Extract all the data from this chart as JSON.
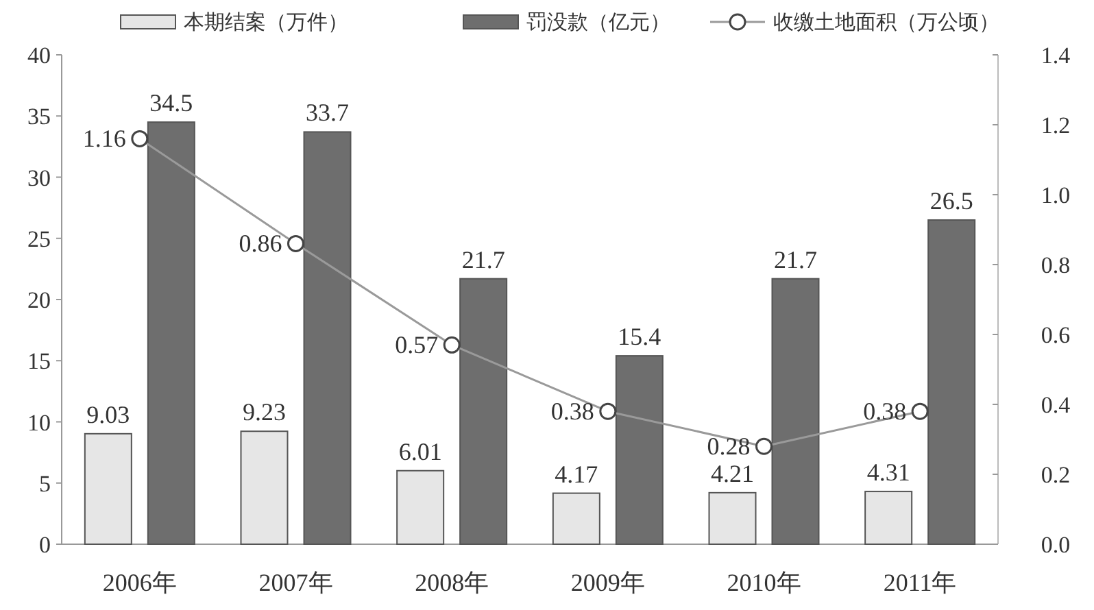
{
  "chart_data": {
    "type": "bar",
    "categories": [
      "2006年",
      "2007年",
      "2008年",
      "2009年",
      "2010年",
      "2011年"
    ],
    "series": [
      {
        "name": "本期结案（万件）",
        "color": "#e6e6e6",
        "values": [
          9.03,
          9.23,
          6.01,
          4.17,
          4.21,
          4.31
        ]
      },
      {
        "name": "罚没款（亿元）",
        "color": "#6e6e6e",
        "values": [
          34.5,
          33.7,
          21.7,
          15.4,
          21.7,
          26.5
        ]
      },
      {
        "name": "收缴土地面积（万公顷）",
        "type": "line",
        "axis": "y2",
        "color": "#9a9a9a",
        "values": [
          1.16,
          0.86,
          0.57,
          0.38,
          0.28,
          0.38
        ]
      }
    ],
    "ylim": [
      0,
      40
    ],
    "yticks": [
      0,
      5,
      10,
      15,
      20,
      25,
      30,
      35,
      40
    ],
    "y2lim": [
      0,
      1.4
    ],
    "y2ticks": [
      {
        "value": 0,
        "label": "0.0"
      },
      0.2,
      0.4,
      0.6,
      0.8,
      {
        "value": 1,
        "label": "1.0"
      },
      1.2,
      1.4
    ],
    "data_labels": true,
    "legend": "top",
    "marker": "circle",
    "grid": false
  }
}
